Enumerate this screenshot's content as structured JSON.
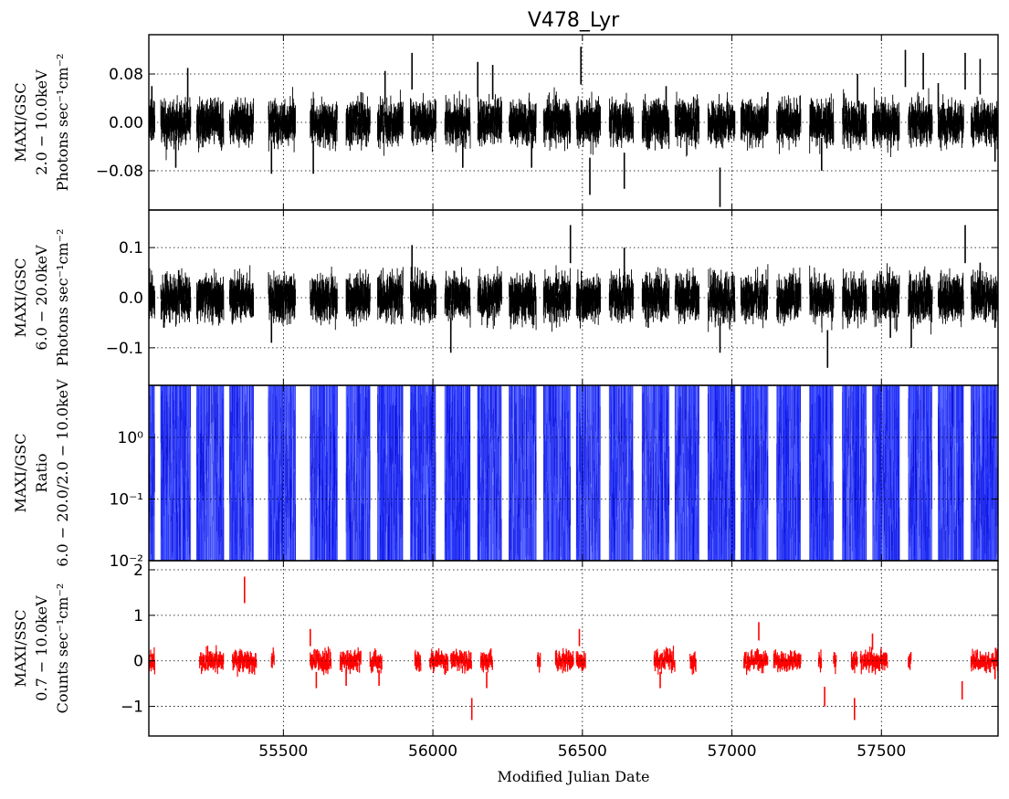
{
  "chart_data": {
    "type": "line",
    "title": "V478_Lyr",
    "xlabel": "Modified Julian Date",
    "xlim": [
      55050,
      57890
    ],
    "xticks": [
      55500,
      56000,
      56500,
      57000,
      57500
    ],
    "grid": true,
    "panels": [
      {
        "id": "gsc_2_10",
        "ylabel_lines": [
          "MAXI/GSC",
          "2.0 − 10.0keV",
          "Photons sec⁻¹cm⁻²"
        ],
        "ylim": [
          -0.145,
          0.145
        ],
        "yticks": [
          0.08,
          0.0,
          -0.08
        ],
        "ytick_labels": [
          "0.08",
          "0.00",
          "−0.08"
        ],
        "color": "#000000",
        "noise": 0.016,
        "spikes": [
          [
            55060,
            0.06
          ],
          [
            55110,
            -0.045
          ],
          [
            55140,
            -0.075
          ],
          [
            55180,
            0.09
          ],
          [
            55460,
            -0.085
          ],
          [
            55600,
            -0.085
          ],
          [
            55760,
            0.05
          ],
          [
            55840,
            0.085
          ],
          [
            55930,
            0.115
          ],
          [
            56100,
            -0.075
          ],
          [
            56150,
            0.1
          ],
          [
            56200,
            0.095
          ],
          [
            56330,
            -0.075
          ],
          [
            56495,
            0.125
          ],
          [
            56525,
            -0.12
          ],
          [
            56640,
            -0.11
          ],
          [
            56780,
            0.06
          ],
          [
            56960,
            -0.14
          ],
          [
            57120,
            0.05
          ],
          [
            57300,
            -0.08
          ],
          [
            57420,
            0.08
          ],
          [
            57580,
            0.12
          ],
          [
            57640,
            0.115
          ],
          [
            57690,
            0.065
          ],
          [
            57780,
            0.115
          ],
          [
            57830,
            0.105
          ],
          [
            57880,
            -0.065
          ]
        ]
      },
      {
        "id": "gsc_6_20",
        "ylabel_lines": [
          "MAXI/GSC",
          "6.0 − 20.0keV",
          "Photons sec⁻¹cm⁻²"
        ],
        "ylim": [
          -0.175,
          0.175
        ],
        "yticks": [
          0.1,
          0.0,
          -0.1
        ],
        "ytick_labels": [
          "0.1",
          "0.0",
          "−0.1"
        ],
        "color": "#000000",
        "noise": 0.02,
        "spikes": [
          [
            55050,
            -0.04
          ],
          [
            55100,
            -0.06
          ],
          [
            55120,
            -0.05
          ],
          [
            55150,
            0.055
          ],
          [
            55330,
            -0.05
          ],
          [
            55460,
            -0.09
          ],
          [
            55930,
            0.105
          ],
          [
            56060,
            -0.11
          ],
          [
            56460,
            0.145
          ],
          [
            56640,
            0.1
          ],
          [
            56720,
            -0.06
          ],
          [
            56960,
            -0.11
          ],
          [
            57320,
            -0.14
          ],
          [
            57530,
            -0.08
          ],
          [
            57600,
            -0.1
          ],
          [
            57780,
            0.145
          ],
          [
            57830,
            0.07
          ],
          [
            57880,
            -0.06
          ]
        ]
      },
      {
        "id": "gsc_ratio",
        "ylabel_lines": [
          "MAXI/GSC",
          "Ratio",
          "6.0 − 20.0/2.0 − 10.0keV"
        ],
        "scale": "log",
        "ylim": [
          0.01,
          7.0
        ],
        "yticks": [
          1.0,
          0.1,
          0.01
        ],
        "ytick_labels": [
          "10⁰",
          "10⁻¹",
          "10⁻²"
        ],
        "color": "#0000ff"
      },
      {
        "id": "ssc_07_10",
        "ylabel_lines": [
          "MAXI/SSC",
          "0.7 − 10.0keV",
          "Counts sec⁻¹cm⁻²"
        ],
        "ylim": [
          -1.65,
          2.2
        ],
        "yticks": [
          2,
          1,
          0,
          -1
        ],
        "ytick_labels": [
          "2",
          "1",
          "0",
          "−1"
        ],
        "color": "#ff0000",
        "noise": 0.1,
        "spikes": [
          [
            55370,
            1.85
          ],
          [
            55590,
            0.7
          ],
          [
            55610,
            -0.6
          ],
          [
            55710,
            -0.55
          ],
          [
            55820,
            -0.55
          ],
          [
            56130,
            -1.3
          ],
          [
            56180,
            -0.6
          ],
          [
            56490,
            0.7
          ],
          [
            56760,
            -0.6
          ],
          [
            57090,
            0.85
          ],
          [
            57310,
            -1.0
          ],
          [
            57410,
            -1.3
          ],
          [
            57470,
            0.6
          ],
          [
            57770,
            -0.85
          ],
          [
            57880,
            -0.4
          ]
        ]
      }
    ],
    "visibility_windows": [
      [
        55050,
        55070
      ],
      [
        55090,
        55190
      ],
      [
        55210,
        55300
      ],
      [
        55320,
        55400
      ],
      [
        55450,
        55540
      ],
      [
        55590,
        55680
      ],
      [
        55710,
        55790
      ],
      [
        55815,
        55900
      ],
      [
        55925,
        56010
      ],
      [
        56040,
        56125
      ],
      [
        56150,
        56230
      ],
      [
        56255,
        56345
      ],
      [
        56370,
        56460
      ],
      [
        56480,
        56560
      ],
      [
        56590,
        56670
      ],
      [
        56700,
        56790
      ],
      [
        56810,
        56890
      ],
      [
        56920,
        57010
      ],
      [
        57030,
        57120
      ],
      [
        57150,
        57230
      ],
      [
        57260,
        57340
      ],
      [
        57370,
        57450
      ],
      [
        57470,
        57560
      ],
      [
        57590,
        57670
      ],
      [
        57690,
        57775
      ],
      [
        57800,
        57890
      ]
    ],
    "ssc_windows": [
      [
        55050,
        55070
      ],
      [
        55220,
        55300
      ],
      [
        55330,
        55410
      ],
      [
        55460,
        55470
      ],
      [
        55590,
        55660
      ],
      [
        55690,
        55760
      ],
      [
        55790,
        55830
      ],
      [
        55940,
        55960
      ],
      [
        55990,
        56050
      ],
      [
        56060,
        56130
      ],
      [
        56160,
        56200
      ],
      [
        56350,
        56360
      ],
      [
        56410,
        56470
      ],
      [
        56480,
        56510
      ],
      [
        56740,
        56810
      ],
      [
        56860,
        56880
      ],
      [
        57040,
        57120
      ],
      [
        57140,
        57230
      ],
      [
        57290,
        57300
      ],
      [
        57340,
        57350
      ],
      [
        57400,
        57420
      ],
      [
        57430,
        57520
      ],
      [
        57590,
        57600
      ],
      [
        57800,
        57890
      ]
    ]
  }
}
